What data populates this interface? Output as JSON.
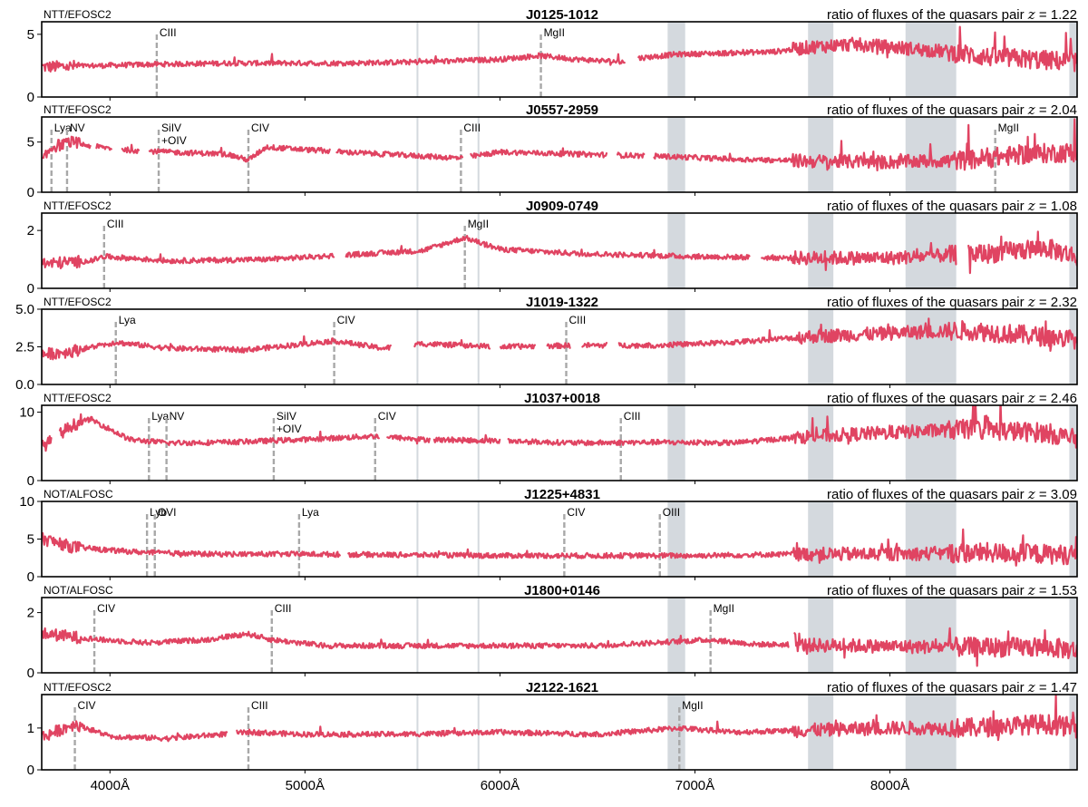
{
  "style": {
    "spectrum_color": "#e04462",
    "line_marker_color": "#a8a8a8",
    "telluric_band_color": "#d4d9de"
  },
  "chart_data": {
    "type": "line",
    "x_unit": "Å",
    "xlim": [
      3650,
      8960
    ],
    "x_ticks": [
      {
        "value": 4000,
        "label": "4000Å"
      },
      {
        "value": 5000,
        "label": "5000Å"
      },
      {
        "value": 6000,
        "label": "6000Å"
      },
      {
        "value": 7000,
        "label": "7000Å"
      },
      {
        "value": 8000,
        "label": "8000Å"
      }
    ],
    "telluric_bands": [
      [
        6860,
        6950
      ],
      [
        7580,
        7710
      ],
      [
        8080,
        8340
      ],
      [
        8920,
        8960
      ]
    ],
    "sky_lines": [
      5577,
      5890
    ],
    "panels": [
      {
        "object": "J0125-1012",
        "instrument": "NTT/EFOSC2",
        "ratio_label": "ratio of fluxes of the quasars pair",
        "z_symbol": "z",
        "z_value": "= 1.22",
        "ylim": [
          0,
          6
        ],
        "yticks": [
          "0",
          "5"
        ],
        "ytick_values": [
          0,
          5
        ],
        "gaps": [
          [
            6640,
            6710
          ]
        ],
        "lines": [
          {
            "name": "CIII",
            "x": 4240
          },
          {
            "name": "MgII",
            "x": 6210
          }
        ],
        "series": [
          {
            "x": [
              3680,
              4200,
              4600,
              5200,
              5600,
              6000,
              6200,
              6400,
              6640,
              6710,
              6900,
              7400,
              7600,
              7800,
              8000,
              8300,
              8500,
              8960
            ],
            "y": [
              2.4,
              2.6,
              2.7,
              2.7,
              2.8,
              3.0,
              3.3,
              3.0,
              2.8,
              3.1,
              3.4,
              3.6,
              4.0,
              4.2,
              4.0,
              3.6,
              3.2,
              2.8
            ]
          }
        ]
      },
      {
        "object": "J0557-2959",
        "instrument": "NTT/EFOSC2",
        "ratio_label": "ratio of fluxes of the quasars pair",
        "z_symbol": "z",
        "z_value": "= 2.04",
        "ylim": [
          0,
          7.5
        ],
        "yticks": [
          "0",
          "5"
        ],
        "ytick_values": [
          0,
          5
        ],
        "gaps": [
          [
            3900,
            3930
          ],
          [
            4010,
            4060
          ],
          [
            4150,
            4200
          ],
          [
            5130,
            5160
          ],
          [
            5810,
            5850
          ],
          [
            6550,
            6600
          ],
          [
            6740,
            6790
          ]
        ],
        "lines": [
          {
            "name": "Lya",
            "x": 3700
          },
          {
            "name": "NV",
            "x": 3780
          },
          {
            "name": "SiIV",
            "name2": "+OIV",
            "x": 4250
          },
          {
            "name": "CIV",
            "x": 4710
          },
          {
            "name": "CIII",
            "x": 5800
          },
          {
            "name": "MgII",
            "x": 8540
          }
        ],
        "series": [
          {
            "x": [
              3660,
              3700,
              3800,
              3900,
              4100,
              4300,
              4600,
              4710,
              4800,
              5200,
              5600,
              5800,
              6000,
              6400,
              6800,
              7200,
              7600,
              8000,
              8400,
              8700,
              8960
            ],
            "y": [
              3.2,
              4.5,
              5.0,
              4.6,
              4.2,
              4.0,
              3.8,
              3.2,
              4.5,
              4.0,
              3.6,
              3.4,
              4.0,
              3.8,
              3.6,
              3.3,
              3.1,
              3.0,
              3.2,
              3.8,
              4.0
            ]
          }
        ]
      },
      {
        "object": "J0909-0749",
        "instrument": "NTT/EFOSC2",
        "ratio_label": "ratio of fluxes of the quasars pair",
        "z_symbol": "z",
        "z_value": "= 1.08",
        "ylim": [
          0,
          2.6
        ],
        "yticks": [
          "0",
          "2"
        ],
        "ytick_values": [
          0,
          2
        ],
        "gaps": [
          [
            5150,
            5210
          ],
          [
            7280,
            7340
          ],
          [
            8340,
            8400
          ]
        ],
        "lines": [
          {
            "name": "CIII",
            "x": 3970
          },
          {
            "name": "MgII",
            "x": 5820
          }
        ],
        "series": [
          {
            "x": [
              3660,
              3900,
              3970,
              4300,
              4800,
              5200,
              5600,
              5820,
              6000,
              6400,
              7000,
              7500,
              8000,
              8500,
              8800,
              8960
            ],
            "y": [
              0.85,
              0.95,
              1.1,
              0.95,
              1.0,
              1.15,
              1.3,
              1.75,
              1.35,
              1.2,
              1.1,
              1.05,
              1.05,
              1.2,
              1.4,
              1.1
            ]
          }
        ]
      },
      {
        "object": "J1019-1322",
        "instrument": "NTT/EFOSC2",
        "ratio_label": "ratio of fluxes of the quasars pair",
        "z_symbol": "z",
        "z_value": "= 2.32",
        "ylim": [
          0,
          5
        ],
        "yticks": [
          "0.0",
          "2.5",
          "5.0"
        ],
        "ytick_values": [
          0,
          2.5,
          5
        ],
        "gaps": [
          [
            5440,
            5560
          ],
          [
            5950,
            6000
          ],
          [
            6180,
            6240
          ],
          [
            6360,
            6420
          ],
          [
            6550,
            6610
          ]
        ],
        "lines": [
          {
            "name": "Lya",
            "x": 4030
          },
          {
            "name": "CIV",
            "x": 5150
          },
          {
            "name": "CIII",
            "x": 6340
          }
        ],
        "series": [
          {
            "x": [
              3660,
              3800,
              4030,
              4300,
              4700,
              5150,
              5400,
              5600,
              6000,
              6400,
              6800,
              7200,
              7600,
              8000,
              8400,
              8960
            ],
            "y": [
              2.0,
              2.2,
              2.8,
              2.4,
              2.3,
              2.9,
              2.4,
              2.7,
              2.5,
              2.6,
              2.6,
              2.8,
              3.2,
              3.4,
              3.6,
              3.0
            ]
          }
        ]
      },
      {
        "object": "J1037+0018",
        "instrument": "NTT/EFOSC2",
        "ratio_label": "ratio of fluxes of the quasars pair",
        "z_symbol": "z",
        "z_value": "= 2.46",
        "ylim": [
          0,
          11
        ],
        "yticks": [
          "0",
          "10"
        ],
        "ytick_values": [
          0,
          10
        ],
        "gaps": [
          [
            3700,
            3740
          ],
          [
            5380,
            5420
          ],
          [
            5640,
            5660
          ],
          [
            6000,
            6040
          ]
        ],
        "lines": [
          {
            "name": "Lya",
            "x": 4200
          },
          {
            "name": "NV",
            "x": 4290
          },
          {
            "name": "SiIV",
            "name2": "+OIV",
            "x": 4840
          },
          {
            "name": "CIV",
            "x": 5360
          },
          {
            "name": "CIII",
            "x": 6620
          }
        ],
        "series": [
          {
            "x": [
              3660,
              3800,
              3900,
              4000,
              4100,
              4300,
              4600,
              5000,
              5360,
              5600,
              6000,
              6400,
              6800,
              7200,
              7600,
              8000,
              8400,
              8800,
              8960
            ],
            "y": [
              5.0,
              8.0,
              9.0,
              7.5,
              6.0,
              5.5,
              5.6,
              6.0,
              6.5,
              6.0,
              5.8,
              5.5,
              5.6,
              5.5,
              6.5,
              7.0,
              7.5,
              7.0,
              6.0
            ]
          }
        ]
      },
      {
        "object": "J1225+4831",
        "instrument": "NOT/ALFOSC",
        "ratio_label": "ratio of fluxes of the quasars pair",
        "z_symbol": "z",
        "z_value": "= 3.09",
        "ylim": [
          0,
          10
        ],
        "yticks": [
          "0",
          "5",
          "10"
        ],
        "ytick_values": [
          0,
          5,
          10
        ],
        "gaps": [
          [
            5180,
            5220
          ]
        ],
        "lines": [
          {
            "name": "Lyb",
            "x": 4190
          },
          {
            "name": "OVI",
            "x": 4230
          },
          {
            "name": "Lya",
            "x": 4970
          },
          {
            "name": "CIV",
            "x": 6330
          },
          {
            "name": "OIII",
            "x": 6820
          }
        ],
        "series": [
          {
            "x": [
              3660,
              3800,
              4000,
              4200,
              4500,
              5000,
              5500,
              6000,
              6500,
              7000,
              7500,
              8000,
              8500,
              8960
            ],
            "y": [
              5.0,
              4.0,
              3.5,
              3.2,
              3.0,
              3.0,
              2.9,
              2.8,
              2.8,
              2.8,
              3.0,
              3.0,
              3.2,
              2.9
            ]
          }
        ]
      },
      {
        "object": "J1800+0146",
        "instrument": "NOT/ALFOSC",
        "ratio_label": "ratio of fluxes of the quasars pair",
        "z_symbol": "z",
        "z_value": "= 1.53",
        "ylim": [
          0,
          2.5
        ],
        "yticks": [
          "0",
          "2"
        ],
        "ytick_values": [
          0,
          2
        ],
        "gaps": [
          [
            7480,
            7510
          ]
        ],
        "lines": [
          {
            "name": "CIV",
            "x": 3920
          },
          {
            "name": "CIII",
            "x": 4830
          },
          {
            "name": "MgII",
            "x": 7080
          }
        ],
        "series": [
          {
            "x": [
              3660,
              3800,
              3950,
              4200,
              4500,
              4700,
              4830,
              5100,
              5500,
              6000,
              6500,
              7080,
              7300,
              7800,
              8300,
              8800,
              8960
            ],
            "y": [
              1.3,
              1.2,
              1.1,
              1.0,
              1.1,
              1.3,
              1.1,
              0.9,
              0.9,
              0.9,
              0.9,
              1.1,
              0.95,
              0.9,
              0.85,
              0.85,
              0.75
            ]
          }
        ]
      },
      {
        "object": "J2122-1621",
        "instrument": "NTT/EFOSC2",
        "ratio_label": "ratio of fluxes of the quasars pair",
        "z_symbol": "z",
        "z_value": "= 1.47",
        "ylim": [
          0,
          1.8
        ],
        "yticks": [
          "0",
          "1"
        ],
        "ytick_values": [
          0,
          1
        ],
        "gaps": [
          [
            4600,
            4650
          ]
        ],
        "lines": [
          {
            "name": "CIV",
            "x": 3820
          },
          {
            "name": "CIII",
            "x": 4710
          },
          {
            "name": "MgII",
            "x": 6920
          }
        ],
        "series": [
          {
            "x": [
              3660,
              3820,
              4000,
              4300,
              4710,
              5000,
              5500,
              6000,
              6500,
              6920,
              7200,
              7600,
              8000,
              8400,
              8800,
              8960
            ],
            "y": [
              0.8,
              1.1,
              0.8,
              0.75,
              0.9,
              0.85,
              0.85,
              0.9,
              0.85,
              1.0,
              0.9,
              0.95,
              1.0,
              1.0,
              1.1,
              1.0
            ]
          }
        ]
      }
    ]
  }
}
